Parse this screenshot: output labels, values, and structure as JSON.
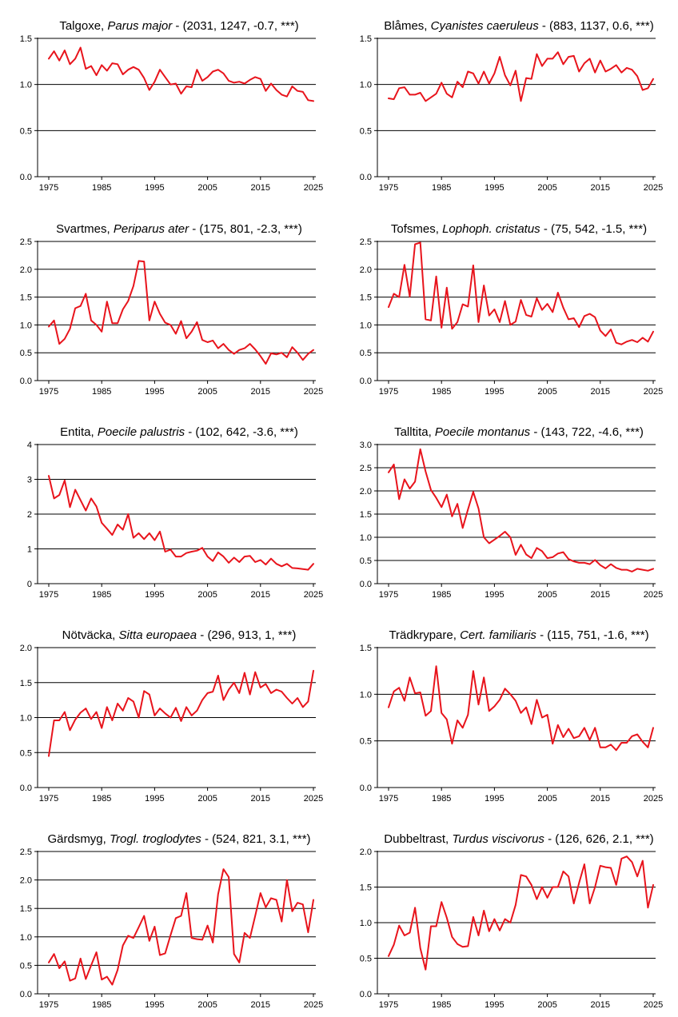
{
  "series_color": "#e8141c",
  "chart_data": [
    {
      "type": "line",
      "title": {
        "common": "Talgoxe",
        "latin": "Parus major",
        "stats": " - (2031, 1247, -0.7, ***)"
      },
      "xlim": [
        1975,
        2025
      ],
      "ylim": [
        0,
        1.5
      ],
      "xticks": [
        1975,
        1985,
        1995,
        2005,
        2015,
        2025
      ],
      "yticks": [
        0,
        0.5,
        1.0,
        1.5
      ],
      "ytick_labels": [
        "0.0",
        "0.5",
        "1.0",
        "1.5"
      ],
      "grid_y": [
        0.5,
        1.0,
        1.5
      ],
      "x_start": 1975,
      "values": [
        1.28,
        1.36,
        1.26,
        1.37,
        1.22,
        1.28,
        1.4,
        1.17,
        1.2,
        1.1,
        1.21,
        1.15,
        1.23,
        1.22,
        1.11,
        1.16,
        1.19,
        1.16,
        1.07,
        0.94,
        1.03,
        1.16,
        1.08,
        1.0,
        1.01,
        0.9,
        0.98,
        0.97,
        1.16,
        1.04,
        1.08,
        1.14,
        1.16,
        1.12,
        1.04,
        1.02,
        1.03,
        1.01,
        1.05,
        1.08,
        1.06,
        0.93,
        1.01,
        0.94,
        0.89,
        0.87,
        0.98,
        0.93,
        0.92,
        0.83,
        0.82
      ]
    },
    {
      "type": "line",
      "title": {
        "common": "Blåmes",
        "latin": "Cyanistes caeruleus",
        "stats": " - (883, 1137, 0.6, ***)"
      },
      "xlim": [
        1975,
        2025
      ],
      "ylim": [
        0,
        1.5
      ],
      "xticks": [
        1975,
        1985,
        1995,
        2005,
        2015,
        2025
      ],
      "yticks": [
        0,
        0.5,
        1.0,
        1.5
      ],
      "ytick_labels": [
        "0.0",
        "0.5",
        "1.0",
        "1.5"
      ],
      "grid_y": [
        0.5,
        1.0,
        1.5
      ],
      "x_start": 1975,
      "values": [
        0.85,
        0.84,
        0.96,
        0.97,
        0.89,
        0.89,
        0.91,
        0.82,
        0.86,
        0.9,
        1.02,
        0.9,
        0.86,
        1.03,
        0.97,
        1.14,
        1.12,
        1.01,
        1.14,
        1.01,
        1.12,
        1.3,
        1.1,
        0.99,
        1.15,
        0.82,
        1.07,
        1.06,
        1.33,
        1.2,
        1.28,
        1.28,
        1.35,
        1.22,
        1.3,
        1.31,
        1.14,
        1.23,
        1.28,
        1.13,
        1.26,
        1.14,
        1.17,
        1.21,
        1.13,
        1.18,
        1.16,
        1.09,
        0.94,
        0.96,
        1.06
      ]
    },
    {
      "type": "line",
      "title": {
        "common": "Svartmes",
        "latin": "Periparus ater",
        "stats": " - (175, 801, -2.3, ***)"
      },
      "xlim": [
        1975,
        2025
      ],
      "ylim": [
        0,
        2.5
      ],
      "xticks": [
        1975,
        1985,
        1995,
        2005,
        2015,
        2025
      ],
      "yticks": [
        0,
        0.5,
        1.0,
        1.5,
        2.0,
        2.5
      ],
      "ytick_labels": [
        "0.0",
        "0.5",
        "1.0",
        "1.5",
        "2.0",
        "2.5"
      ],
      "grid_y": [
        0.5,
        1.0,
        1.5,
        2.0,
        2.5
      ],
      "x_start": 1975,
      "values": [
        0.97,
        1.08,
        0.66,
        0.75,
        0.93,
        1.3,
        1.34,
        1.56,
        1.08,
        1.0,
        0.88,
        1.42,
        1.03,
        1.03,
        1.28,
        1.43,
        1.7,
        2.15,
        2.14,
        1.08,
        1.42,
        1.2,
        1.04,
        1.0,
        0.84,
        1.07,
        0.76,
        0.88,
        1.05,
        0.73,
        0.69,
        0.72,
        0.58,
        0.66,
        0.55,
        0.48,
        0.55,
        0.58,
        0.66,
        0.56,
        0.44,
        0.3,
        0.49,
        0.47,
        0.5,
        0.42,
        0.6,
        0.5,
        0.37,
        0.48,
        0.55
      ]
    },
    {
      "type": "line",
      "title": {
        "common": "Tofsmes",
        "latin": "Lophoph. cristatus",
        "stats": " - (75, 542, -1.5, ***)"
      },
      "xlim": [
        1975,
        2025
      ],
      "ylim": [
        0,
        2.5
      ],
      "xticks": [
        1975,
        1985,
        1995,
        2005,
        2015,
        2025
      ],
      "yticks": [
        0,
        0.5,
        1.0,
        1.5,
        2.0,
        2.5
      ],
      "ytick_labels": [
        "0.0",
        "0.5",
        "1.0",
        "1.5",
        "2.0",
        "2.5"
      ],
      "grid_y": [
        0.5,
        1.0,
        1.5,
        2.0,
        2.5
      ],
      "x_start": 1975,
      "values": [
        1.32,
        1.56,
        1.5,
        2.08,
        1.51,
        2.45,
        2.48,
        1.1,
        1.08,
        1.87,
        0.95,
        1.67,
        0.93,
        1.05,
        1.37,
        1.33,
        2.07,
        1.05,
        1.71,
        1.17,
        1.28,
        1.05,
        1.43,
        1.0,
        1.06,
        1.45,
        1.18,
        1.15,
        1.48,
        1.27,
        1.38,
        1.23,
        1.58,
        1.31,
        1.1,
        1.12,
        0.96,
        1.16,
        1.2,
        1.14,
        0.9,
        0.8,
        0.92,
        0.68,
        0.65,
        0.7,
        0.73,
        0.69,
        0.77,
        0.7,
        0.88
      ]
    },
    {
      "type": "line",
      "title": {
        "common": "Entita",
        "latin": "Poecile palustris",
        "stats": " - (102, 642, -3.6, ***)"
      },
      "xlim": [
        1975,
        2025
      ],
      "ylim": [
        0,
        4
      ],
      "xticks": [
        1975,
        1985,
        1995,
        2005,
        2015,
        2025
      ],
      "yticks": [
        0,
        1,
        2,
        3,
        4
      ],
      "ytick_labels": [
        "0",
        "1",
        "2",
        "3",
        "4"
      ],
      "grid_y": [
        1,
        2,
        3,
        4
      ],
      "x_start": 1975,
      "values": [
        3.1,
        2.45,
        2.55,
        2.97,
        2.2,
        2.7,
        2.4,
        2.1,
        2.45,
        2.22,
        1.75,
        1.58,
        1.4,
        1.7,
        1.55,
        2.0,
        1.32,
        1.45,
        1.28,
        1.45,
        1.25,
        1.5,
        0.92,
        0.98,
        0.78,
        0.78,
        0.88,
        0.92,
        0.95,
        1.03,
        0.78,
        0.65,
        0.9,
        0.78,
        0.6,
        0.75,
        0.62,
        0.78,
        0.8,
        0.62,
        0.68,
        0.55,
        0.72,
        0.57,
        0.5,
        0.57,
        0.45,
        0.44,
        0.42,
        0.4,
        0.57
      ]
    },
    {
      "type": "line",
      "title": {
        "common": "Talltita",
        "latin": "Poecile montanus",
        "stats": " - (143, 722, -4.6, ***)"
      },
      "xlim": [
        1975,
        2025
      ],
      "ylim": [
        0,
        3.0
      ],
      "xticks": [
        1975,
        1985,
        1995,
        2005,
        2015,
        2025
      ],
      "yticks": [
        0,
        0.5,
        1.0,
        1.5,
        2.0,
        2.5,
        3.0
      ],
      "ytick_labels": [
        "0.0",
        "0.5",
        "1.0",
        "1.5",
        "2.0",
        "2.5",
        "3.0"
      ],
      "grid_y": [
        0.5,
        1.0,
        1.5,
        2.0,
        2.5,
        3.0
      ],
      "x_start": 1975,
      "values": [
        2.4,
        2.57,
        1.82,
        2.25,
        2.05,
        2.2,
        2.9,
        2.42,
        2.02,
        1.85,
        1.65,
        1.92,
        1.45,
        1.72,
        1.2,
        1.6,
        1.98,
        1.62,
        1.0,
        0.87,
        0.95,
        1.03,
        1.12,
        1.0,
        0.62,
        0.84,
        0.63,
        0.55,
        0.77,
        0.7,
        0.55,
        0.57,
        0.65,
        0.68,
        0.53,
        0.48,
        0.45,
        0.45,
        0.42,
        0.51,
        0.4,
        0.33,
        0.42,
        0.34,
        0.3,
        0.3,
        0.26,
        0.32,
        0.3,
        0.28,
        0.32
      ]
    },
    {
      "type": "line",
      "title": {
        "common": "Nötväcka",
        "latin": "Sitta europaea",
        "stats": " - (296, 913, 1, ***)"
      },
      "xlim": [
        1975,
        2025
      ],
      "ylim": [
        0,
        2.0
      ],
      "xticks": [
        1975,
        1985,
        1995,
        2005,
        2015,
        2025
      ],
      "yticks": [
        0,
        0.5,
        1.0,
        1.5,
        2.0
      ],
      "ytick_labels": [
        "0.0",
        "0.5",
        "1.0",
        "1.5",
        "2.0"
      ],
      "grid_y": [
        0.5,
        1.0,
        1.5,
        2.0
      ],
      "x_start": 1975,
      "values": [
        0.45,
        0.96,
        0.96,
        1.08,
        0.82,
        0.97,
        1.07,
        1.13,
        0.98,
        1.08,
        0.85,
        1.15,
        0.96,
        1.2,
        1.1,
        1.28,
        1.23,
        1.0,
        1.38,
        1.33,
        1.03,
        1.13,
        1.06,
        1.0,
        1.14,
        0.95,
        1.15,
        1.03,
        1.1,
        1.25,
        1.35,
        1.37,
        1.6,
        1.25,
        1.4,
        1.5,
        1.35,
        1.64,
        1.33,
        1.65,
        1.43,
        1.48,
        1.35,
        1.4,
        1.37,
        1.28,
        1.2,
        1.28,
        1.15,
        1.23,
        1.67
      ]
    },
    {
      "type": "line",
      "title": {
        "common": "Trädkrypare",
        "latin": "Cert. familiaris",
        "stats": " - (115, 751, -1.6, ***)"
      },
      "xlim": [
        1975,
        2025
      ],
      "ylim": [
        0,
        1.5
      ],
      "xticks": [
        1975,
        1985,
        1995,
        2005,
        2015,
        2025
      ],
      "yticks": [
        0,
        0.5,
        1.0,
        1.5
      ],
      "ytick_labels": [
        "0.0",
        "0.5",
        "1.0",
        "1.5"
      ],
      "grid_y": [
        0.5,
        1.0,
        1.5
      ],
      "x_start": 1975,
      "values": [
        0.86,
        1.03,
        1.07,
        0.93,
        1.18,
        1.01,
        1.02,
        0.77,
        0.82,
        1.3,
        0.8,
        0.73,
        0.47,
        0.72,
        0.64,
        0.78,
        1.25,
        0.89,
        1.18,
        0.82,
        0.87,
        0.94,
        1.06,
        1.0,
        0.93,
        0.8,
        0.86,
        0.68,
        0.94,
        0.75,
        0.78,
        0.47,
        0.67,
        0.54,
        0.63,
        0.53,
        0.55,
        0.64,
        0.51,
        0.64,
        0.43,
        0.43,
        0.46,
        0.4,
        0.48,
        0.48,
        0.55,
        0.57,
        0.49,
        0.43,
        0.64
      ]
    },
    {
      "type": "line",
      "title": {
        "common": "Gärdsmyg",
        "latin": "Trogl. troglodytes",
        "stats": " - (524, 821, 3.1, ***)"
      },
      "xlim": [
        1975,
        2025
      ],
      "ylim": [
        0,
        2.5
      ],
      "xticks": [
        1975,
        1985,
        1995,
        2005,
        2015,
        2025
      ],
      "yticks": [
        0,
        0.5,
        1.0,
        1.5,
        2.0,
        2.5
      ],
      "ytick_labels": [
        "0.0",
        "0.5",
        "1.0",
        "1.5",
        "2.0",
        "2.5"
      ],
      "grid_y": [
        0.5,
        1.0,
        1.5,
        2.0,
        2.5
      ],
      "x_start": 1975,
      "values": [
        0.55,
        0.7,
        0.45,
        0.57,
        0.23,
        0.27,
        0.62,
        0.26,
        0.5,
        0.73,
        0.25,
        0.3,
        0.16,
        0.42,
        0.85,
        1.02,
        0.98,
        1.17,
        1.37,
        0.93,
        1.18,
        0.68,
        0.71,
        1.03,
        1.33,
        1.37,
        1.77,
        0.98,
        0.96,
        0.95,
        1.2,
        0.9,
        1.75,
        2.19,
        2.05,
        0.7,
        0.55,
        1.07,
        0.98,
        1.37,
        1.77,
        1.52,
        1.68,
        1.65,
        1.27,
        2.0,
        1.45,
        1.6,
        1.57,
        1.08,
        1.65
      ]
    },
    {
      "type": "line",
      "title": {
        "common": "Dubbeltrast",
        "latin": "Turdus viscivorus",
        "stats": " - (126, 626, 2.1, ***)"
      },
      "xlim": [
        1975,
        2025
      ],
      "ylim": [
        0,
        2.0
      ],
      "xticks": [
        1975,
        1985,
        1995,
        2005,
        2015,
        2025
      ],
      "yticks": [
        0,
        0.5,
        1.0,
        1.5,
        2.0
      ],
      "ytick_labels": [
        "0.0",
        "0.5",
        "1.0",
        "1.5",
        "2.0"
      ],
      "grid_y": [
        0.5,
        1.0,
        1.5,
        2.0
      ],
      "x_start": 1975,
      "values": [
        0.53,
        0.69,
        0.96,
        0.82,
        0.86,
        1.21,
        0.64,
        0.34,
        0.95,
        0.95,
        1.29,
        1.07,
        0.8,
        0.7,
        0.66,
        0.67,
        1.08,
        0.82,
        1.17,
        0.88,
        1.05,
        0.89,
        1.05,
        1.0,
        1.25,
        1.67,
        1.65,
        1.53,
        1.33,
        1.5,
        1.35,
        1.5,
        1.5,
        1.72,
        1.65,
        1.27,
        1.56,
        1.82,
        1.27,
        1.5,
        1.8,
        1.78,
        1.77,
        1.53,
        1.9,
        1.93,
        1.85,
        1.65,
        1.87,
        1.21,
        1.53
      ]
    }
  ]
}
